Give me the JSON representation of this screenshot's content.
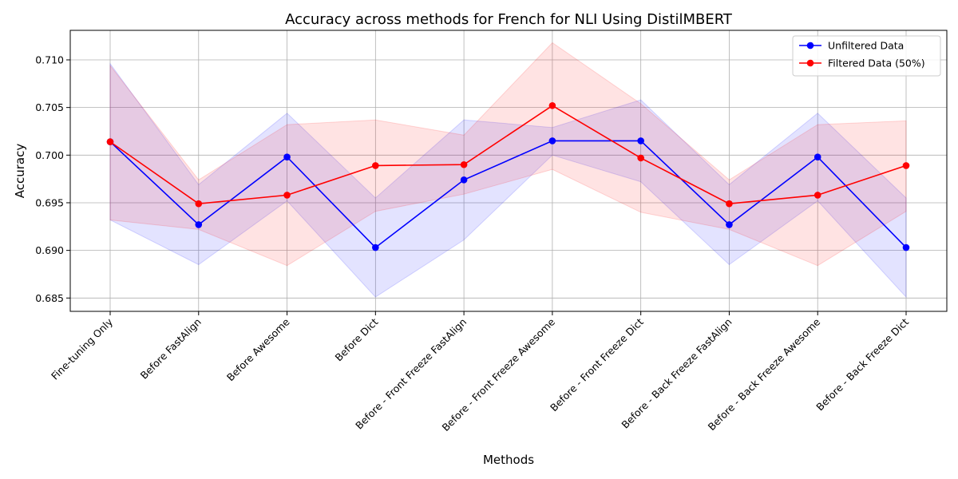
{
  "chart_data": {
    "type": "line",
    "title": "Accuracy across methods for French for NLI Using DistilMBERT",
    "xlabel": "Methods",
    "ylabel": "Accuracy",
    "categories": [
      "Fine-tuning Only",
      "Before FastAlign",
      "Before Awesome",
      "Before Dict",
      "Before - Front Freeze FastAlign",
      "Before - Front Freeze Awesome",
      "Before - Front Freeze Dict",
      "Before - Back Freeze FastAlign",
      "Before - Back Freeze Awesome",
      "Before - Back Freeze Dict"
    ],
    "ylim": [
      0.6836,
      0.7131
    ],
    "yticks": [
      "0.685",
      "0.690",
      "0.695",
      "0.700",
      "0.705",
      "0.710"
    ],
    "grid": true,
    "legend_position": "top-right",
    "series": [
      {
        "name": "Unfiltered Data",
        "color": "#0000ff",
        "values": [
          0.7014,
          0.6927,
          0.6998,
          0.6903,
          0.6974,
          0.7015,
          0.7015,
          0.6927,
          0.6998,
          0.6903
        ],
        "lower": [
          0.6932,
          0.6885,
          0.6952,
          0.6851,
          0.6911,
          0.7,
          0.6972,
          0.6885,
          0.6952,
          0.6851
        ],
        "upper": [
          0.7096,
          0.6969,
          0.7044,
          0.6955,
          0.7037,
          0.7029,
          0.7058,
          0.6969,
          0.7044,
          0.6955
        ]
      },
      {
        "name": "Filtered Data (50%)",
        "color": "#ff0000",
        "values": [
          0.7014,
          0.6949,
          0.6958,
          0.6989,
          0.699,
          0.7052,
          0.6997,
          0.6949,
          0.6958,
          0.6989
        ],
        "lower": [
          0.6932,
          0.6922,
          0.6884,
          0.6941,
          0.6959,
          0.6985,
          0.694,
          0.6922,
          0.6884,
          0.6941
        ],
        "upper": [
          0.7094,
          0.6974,
          0.7032,
          0.7037,
          0.7021,
          0.7118,
          0.7054,
          0.6974,
          0.7032,
          0.7036
        ]
      }
    ]
  }
}
